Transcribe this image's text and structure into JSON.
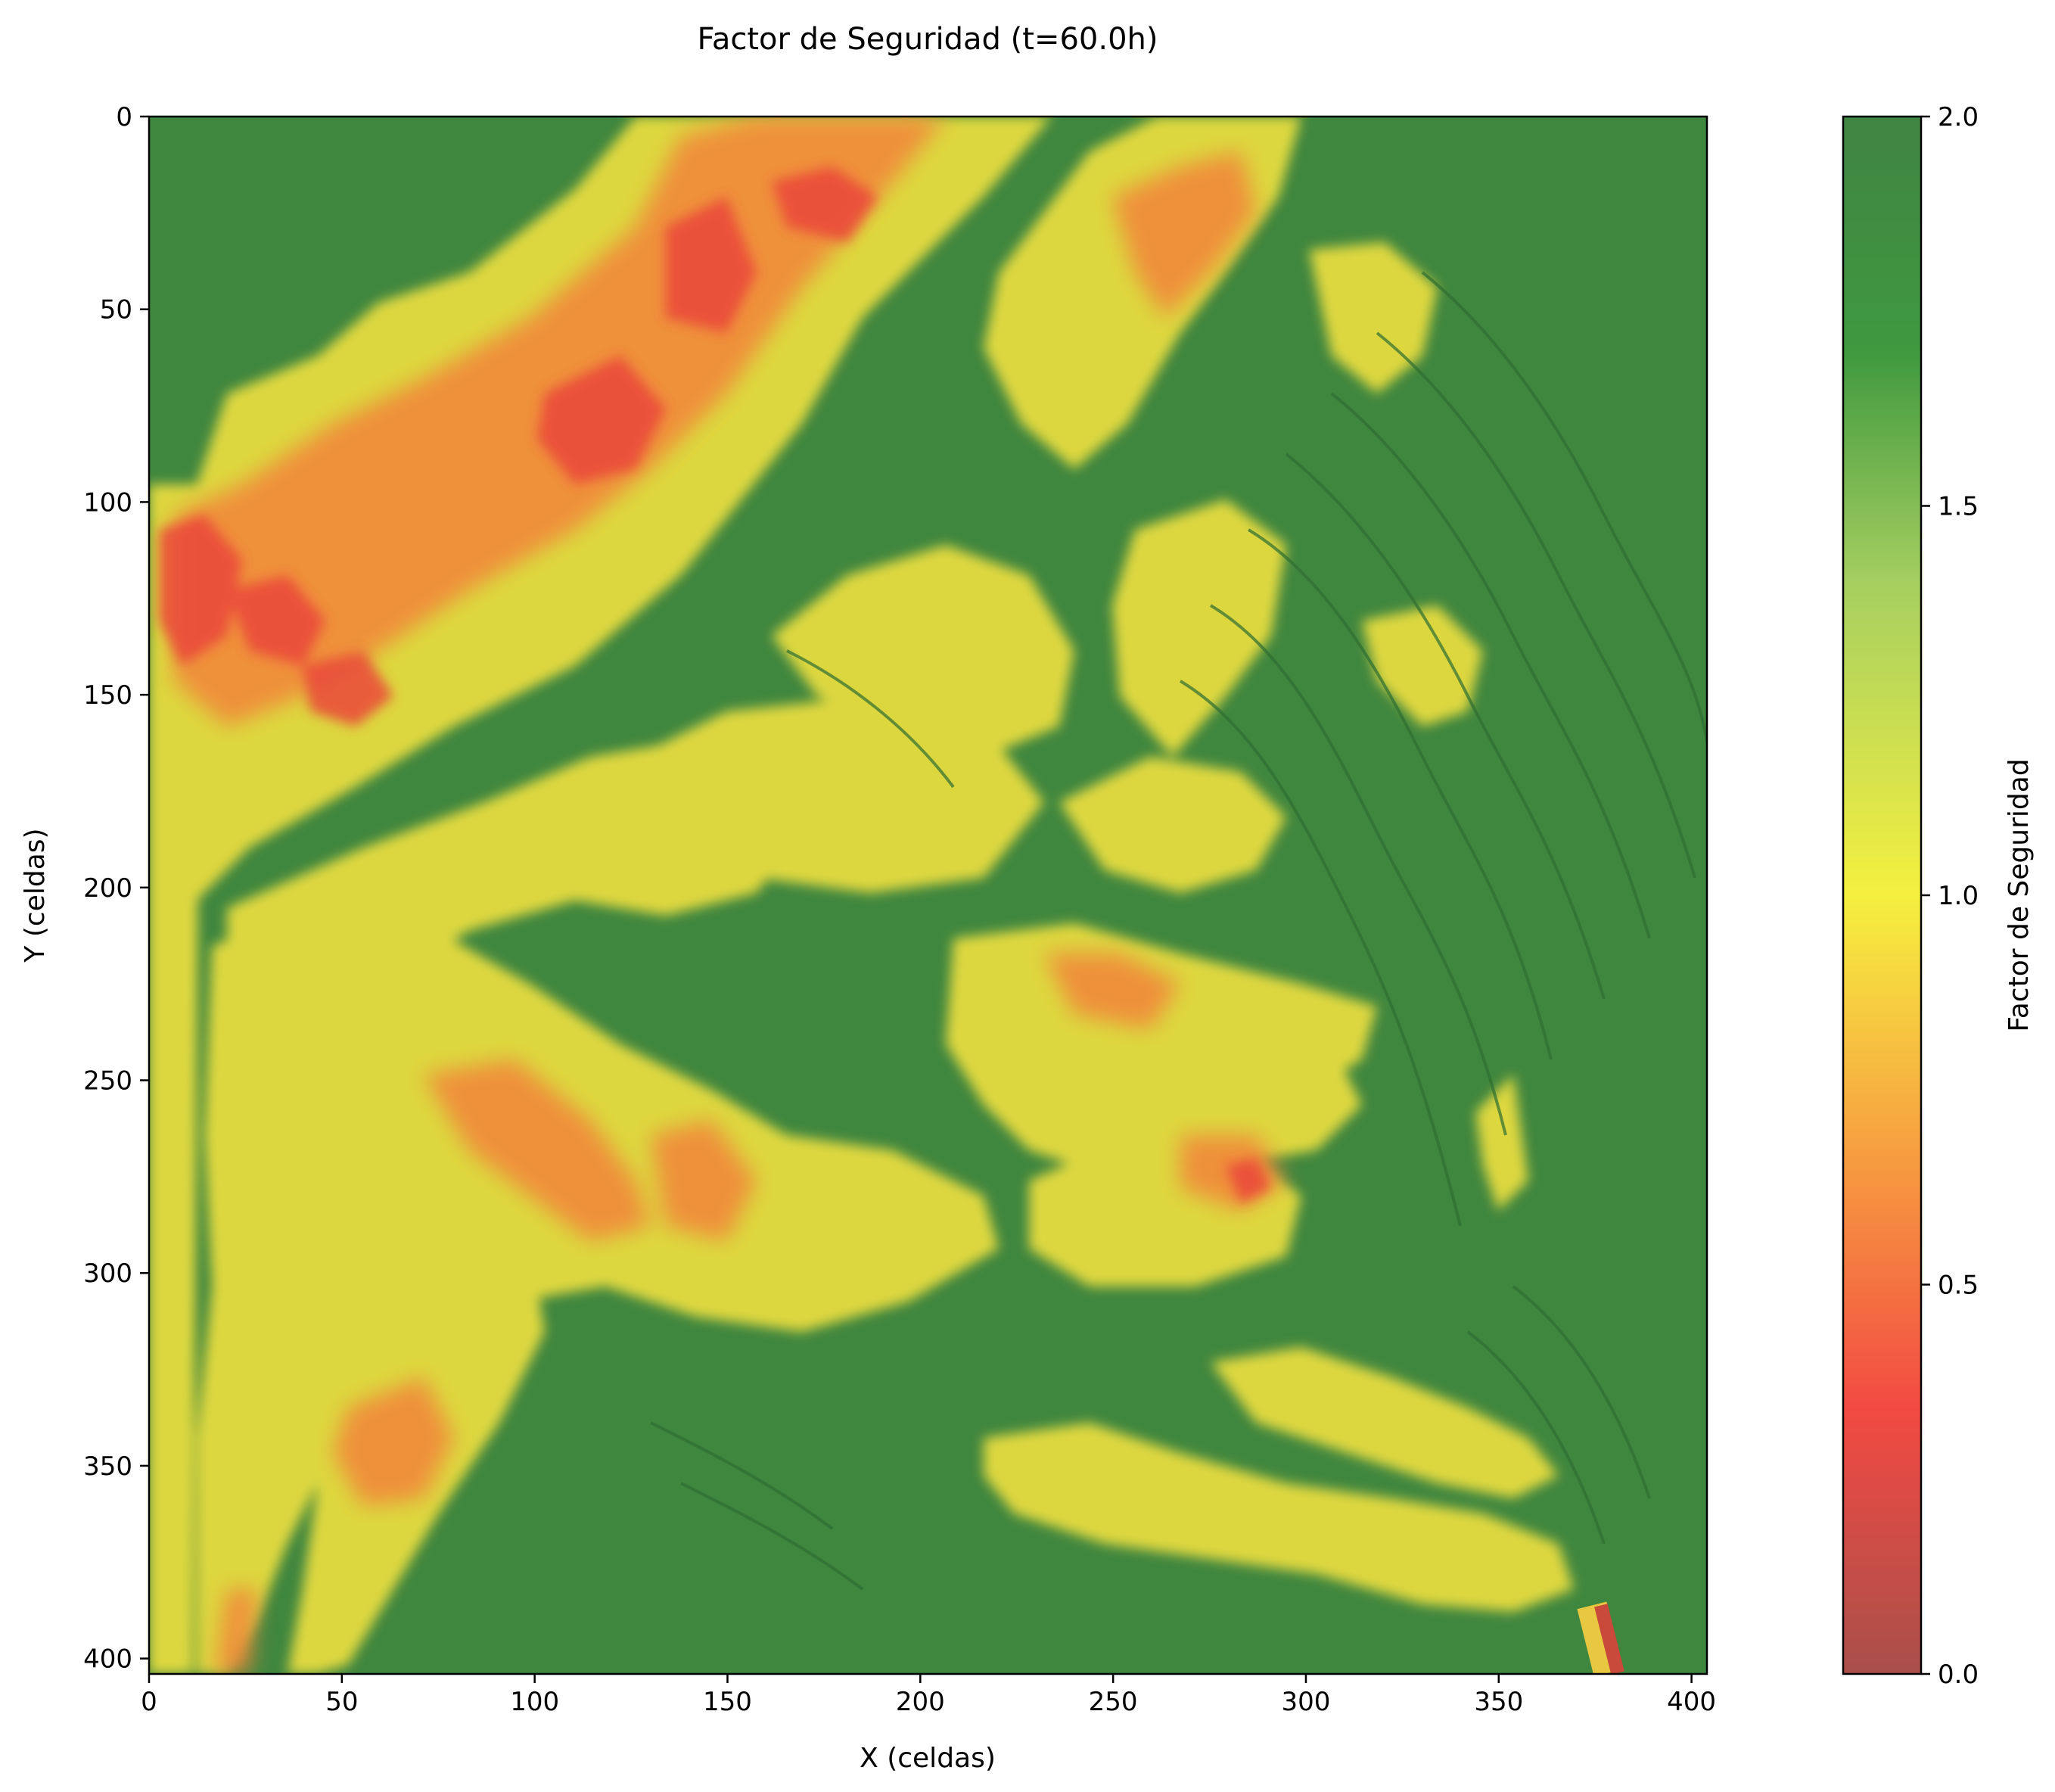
{
  "chart_data": {
    "type": "heatmap",
    "title": "Factor de Seguridad (t=60.0h)",
    "xlabel": "X (celdas)",
    "ylabel": "Y (celdas)",
    "xlim": [
      0,
      404
    ],
    "ylim": [
      404,
      0
    ],
    "x_ticks": [
      "0",
      "50",
      "100",
      "150",
      "200",
      "250",
      "300",
      "350",
      "400"
    ],
    "y_ticks": [
      "0",
      "50",
      "100",
      "150",
      "200",
      "250",
      "300",
      "350",
      "400"
    ],
    "colorbar": {
      "label": "Factor de Seguridad",
      "range": [
        0,
        2
      ],
      "ticks": [
        "0.0",
        "0.5",
        "1.0",
        "1.5",
        "2.0"
      ],
      "colors": [
        "#a94f4a",
        "#f24a42",
        "#f7a640",
        "#f5f03f",
        "#a6cf60",
        "#3f993f",
        "#418443"
      ]
    },
    "colors": {
      "stable": "#3f863f",
      "moderate": "#e9de3f",
      "low": "#f28a3a",
      "critical": "#ec4a3a",
      "contour": "#2f6e31"
    }
  }
}
